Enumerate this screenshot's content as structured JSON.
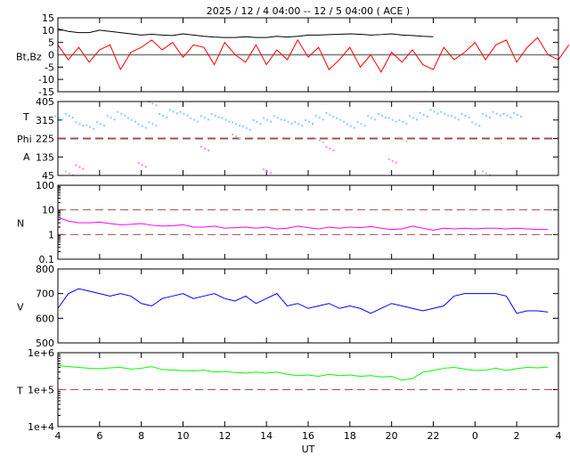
{
  "chart_data": {
    "type": "line",
    "title": "2025 / 12 /  4   04:00 -- 12 /  5   04:00 ( ACE )",
    "xlabel": "UT",
    "x_range_hours": [
      4,
      28
    ],
    "x_tick_labels": [
      "4",
      "6",
      "8",
      "10",
      "12",
      "14",
      "16",
      "18",
      "20",
      "22",
      "0",
      "2",
      "4"
    ],
    "panels": [
      {
        "name": "mag",
        "ylabel": "Bt,Bz",
        "ylim": [
          -15,
          15
        ],
        "scale": "linear",
        "yticks": [
          "15",
          "10",
          "5",
          "0",
          "-5",
          "-10",
          "-15"
        ],
        "ytick_values": [
          15,
          10,
          5,
          0,
          -5,
          -10,
          -15
        ],
        "ref_line": 0,
        "series": [
          {
            "name": "Bt",
            "color": "#000000",
            "x_start": 4,
            "step": 0.5,
            "values": [
              10.5,
              9.5,
              9,
              9,
              10,
              9.5,
              9,
              8.5,
              8,
              8.3,
              8,
              7.8,
              8.5,
              8,
              7.5,
              7.2,
              7,
              7,
              7.3,
              7,
              7,
              7.5,
              7.2,
              7.5,
              8,
              8,
              8.2,
              8.3,
              8.5,
              8.3,
              8,
              8.2,
              8.5,
              8,
              7.8,
              7.5,
              7.3
            ]
          },
          {
            "name": "Bz",
            "color": "#ff0000",
            "x_start": 4,
            "step": 0.5,
            "values": [
              4,
              -2,
              3,
              -3,
              2,
              4,
              -6,
              1,
              3,
              6,
              2,
              5,
              -1,
              4,
              3,
              -4,
              5,
              0,
              -3,
              4,
              -4,
              2,
              -2,
              6,
              -1,
              3,
              -6,
              -2,
              3,
              -5,
              0,
              -7,
              1,
              -3,
              2,
              -4,
              -6,
              3,
              -2,
              1,
              5,
              -2,
              4,
              6,
              -3,
              3,
              7,
              0,
              -2,
              4
            ]
          }
        ]
      },
      {
        "name": "phi",
        "ylabel_lines": [
          "T",
          "Phi",
          "A"
        ],
        "ylim": [
          45,
          405
        ],
        "scale": "linear",
        "yticks": [
          "405",
          "315",
          "225",
          "135",
          "45"
        ],
        "ytick_values": [
          405,
          315,
          225,
          135,
          45
        ],
        "ref_line": 225,
        "series": [
          {
            "name": "Phi",
            "color": "#87cefa",
            "x_start": 4,
            "step": 0.5,
            "values": [
              330,
              340,
              300,
              285,
              300,
              330,
              350,
              320,
              290,
              300,
              340,
              360,
              350,
              320,
              330,
              340,
              320,
              300,
              280,
              310,
              320,
              330,
              310,
              300,
              310,
              330,
              345,
              320,
              290,
              300,
              330,
              340,
              320,
              310,
              330,
              345,
              360,
              350,
              330,
              340,
              300,
              340,
              350,
              340,
              345
            ]
          },
          {
            "name": "Phi-outliers",
            "color": "#c0c0c0",
            "x_start": 4.5,
            "step": 4,
            "values": [
              60,
              400,
              240,
              220,
              225,
              60
            ]
          },
          {
            "name": "Phi-low",
            "color": "#ff80ff",
            "x_start": 5,
            "step": 3,
            "values": [
              90,
              100,
              180,
              70,
              180,
              120
            ]
          }
        ]
      },
      {
        "name": "density",
        "ylabel": "N",
        "ylim": [
          0.1,
          100
        ],
        "scale": "log",
        "yticks": [
          "100",
          "10",
          "1",
          "0.1"
        ],
        "ytick_values": [
          100,
          10,
          1,
          0.1
        ],
        "ref_lines": [
          10,
          1
        ],
        "series": [
          {
            "name": "N",
            "color": "#ff00ff",
            "x_start": 4,
            "step": 0.5,
            "values": [
              5,
              3.5,
              3,
              3,
              3.2,
              2.8,
              2.5,
              2.6,
              2.8,
              2.4,
              2.2,
              2.3,
              2.5,
              2,
              2,
              2.2,
              1.8,
              1.9,
              2,
              1.8,
              2,
              1.7,
              1.8,
              2.2,
              1.9,
              1.7,
              2,
              1.8,
              2,
              1.9,
              2.1,
              1.8,
              1.6,
              1.7,
              2.2,
              1.8,
              1.5,
              1.8,
              1.7,
              1.8,
              1.7,
              1.8,
              1.8,
              1.7,
              1.8,
              1.7,
              1.6,
              1.6
            ]
          }
        ]
      },
      {
        "name": "speed",
        "ylabel": "V",
        "ylim": [
          500,
          800
        ],
        "scale": "linear",
        "yticks": [
          "800",
          "700",
          "600",
          "500"
        ],
        "ytick_values": [
          800,
          700,
          600,
          500
        ],
        "series": [
          {
            "name": "V",
            "color": "#0000ff",
            "x_start": 4,
            "step": 0.5,
            "values": [
              640,
              700,
              720,
              710,
              700,
              690,
              700,
              690,
              660,
              650,
              680,
              690,
              700,
              680,
              690,
              700,
              680,
              670,
              690,
              660,
              680,
              700,
              650,
              660,
              640,
              650,
              660,
              640,
              650,
              640,
              620,
              640,
              660,
              650,
              640,
              630,
              640,
              650,
              690,
              700,
              700,
              700,
              700,
              690,
              620,
              630,
              630,
              625
            ]
          }
        ]
      },
      {
        "name": "temperature",
        "ylabel": "T",
        "ylim": [
          10000,
          1000000
        ],
        "scale": "log",
        "yticks": [
          "1e+6",
          "1e+5",
          "1e+4"
        ],
        "ytick_values": [
          1000000,
          100000,
          10000
        ],
        "ref_line": 100000,
        "series": [
          {
            "name": "T",
            "color": "#00ff00",
            "x_start": 4,
            "step": 0.5,
            "values": [
              450000,
              420000,
              400000,
              380000,
              370000,
              390000,
              400000,
              360000,
              380000,
              420000,
              350000,
              340000,
              330000,
              320000,
              340000,
              300000,
              310000,
              290000,
              280000,
              300000,
              280000,
              300000,
              260000,
              240000,
              250000,
              230000,
              260000,
              240000,
              250000,
              230000,
              240000,
              220000,
              230000,
              180000,
              200000,
              300000,
              330000,
              380000,
              400000,
              360000,
              330000,
              340000,
              380000,
              330000,
              370000,
              400000,
              390000,
              410000
            ]
          }
        ]
      }
    ]
  }
}
